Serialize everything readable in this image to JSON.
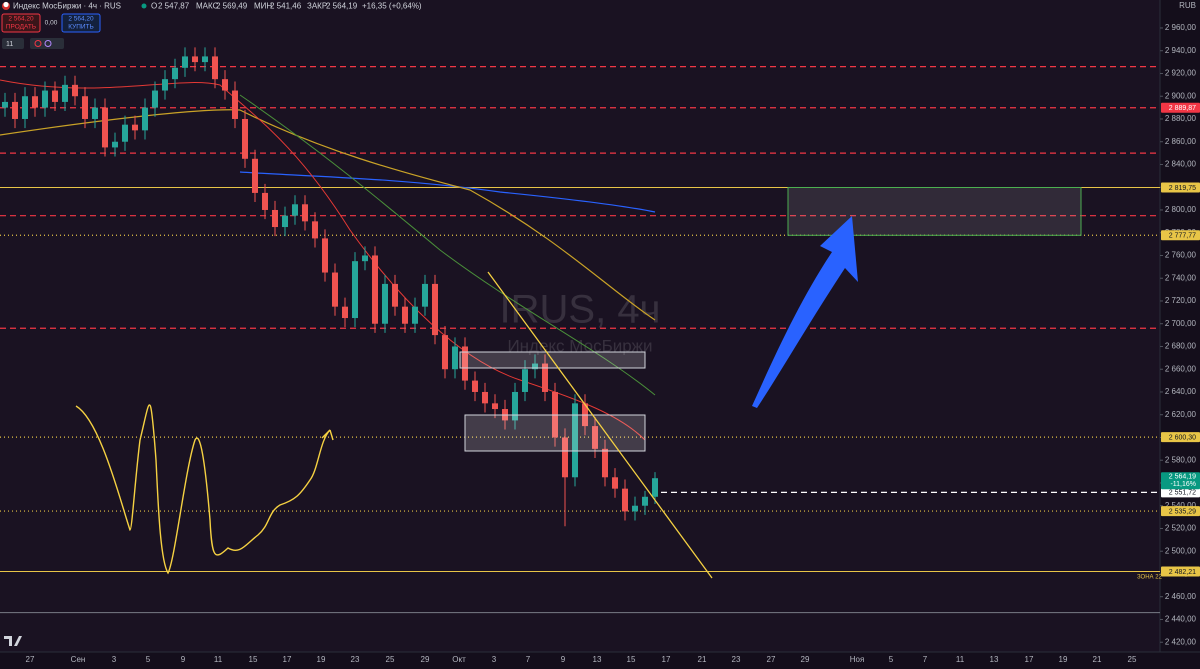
{
  "header": {
    "symbol": "Индекс МосБиржи · 4ч · RUS",
    "open_label": "О",
    "open": "2 547,87",
    "high_label": "МАКС",
    "high": "2 569,49",
    "low_label": "МИН",
    "low": "2 541,46",
    "close_label": "ЗАКР",
    "close": "2 564,19",
    "change": "+16,35 (+0,64%)"
  },
  "trade_panel": {
    "sell_price": "2 564,20",
    "sell": "ПРОДАТЬ",
    "spread": "0,00",
    "buy_price": "2 564,20",
    "buy": "КУПИТЬ"
  },
  "indicators_count": "11",
  "currency": "RUB",
  "watermark": {
    "symbol": "IRUS, 4ч",
    "name": "Индекс МосБиржи"
  },
  "chart_data": {
    "type": "candlestick",
    "categories": [
      "27",
      "Сен",
      "3",
      "5",
      "9",
      "11",
      "15",
      "17",
      "19",
      "23",
      "25",
      "29",
      "Окт",
      "3",
      "7",
      "9",
      "13",
      "15",
      "17",
      "21",
      "23",
      "27",
      "29",
      "Ноя",
      "5",
      "7",
      "11",
      "13",
      "17",
      "19",
      "21",
      "25"
    ],
    "open": [
      2890,
      2895,
      2880,
      2900,
      2890,
      2905,
      2895,
      2910,
      2900,
      2880,
      2890,
      2855,
      2860,
      2875,
      2870,
      2890,
      2905,
      2915,
      2925,
      2935,
      2930,
      2935,
      2915,
      2905,
      2880,
      2845,
      2815,
      2800,
      2785,
      2795,
      2805,
      2790,
      2775,
      2745,
      2715,
      2705,
      2755,
      2760,
      2700,
      2735,
      2715,
      2700,
      2715,
      2735,
      2690,
      2660,
      2680,
      2650,
      2640,
      2630,
      2625,
      2615,
      2640,
      2660,
      2665,
      2640,
      2600,
      2565,
      2630,
      2610,
      2590,
      2565,
      2555,
      2535,
      2540,
      2547.87
    ],
    "high": [
      2903,
      2903,
      2908,
      2908,
      2913,
      2913,
      2918,
      2918,
      2908,
      2898,
      2898,
      2868,
      2883,
      2883,
      2898,
      2913,
      2923,
      2933,
      2943,
      2943,
      2943,
      2943,
      2923,
      2913,
      2888,
      2853,
      2823,
      2808,
      2803,
      2813,
      2813,
      2798,
      2783,
      2753,
      2723,
      2763,
      2768,
      2768,
      2743,
      2743,
      2723,
      2723,
      2743,
      2743,
      2698,
      2688,
      2688,
      2658,
      2648,
      2638,
      2633,
      2648,
      2668,
      2673,
      2673,
      2648,
      2608,
      2638,
      2638,
      2618,
      2598,
      2573,
      2563,
      2548,
      2553,
      2569.49
    ],
    "low": [
      2882,
      2872,
      2872,
      2882,
      2882,
      2887,
      2887,
      2892,
      2872,
      2872,
      2847,
      2847,
      2852,
      2862,
      2862,
      2882,
      2897,
      2907,
      2917,
      2922,
      2922,
      2907,
      2897,
      2872,
      2837,
      2807,
      2792,
      2777,
      2777,
      2787,
      2782,
      2767,
      2737,
      2707,
      2697,
      2697,
      2747,
      2692,
      2692,
      2707,
      2692,
      2692,
      2707,
      2682,
      2652,
      2652,
      2642,
      2632,
      2622,
      2617,
      2607,
      2607,
      2632,
      2652,
      2632,
      2592,
      2522,
      2557,
      2602,
      2582,
      2557,
      2547,
      2527,
      2527,
      2532,
      2541.46
    ],
    "close": [
      2895,
      2880,
      2900,
      2890,
      2905,
      2895,
      2910,
      2900,
      2880,
      2890,
      2855,
      2860,
      2875,
      2870,
      2890,
      2905,
      2915,
      2925,
      2935,
      2930,
      2935,
      2915,
      2905,
      2880,
      2845,
      2815,
      2800,
      2785,
      2795,
      2805,
      2790,
      2775,
      2745,
      2715,
      2705,
      2755,
      2760,
      2700,
      2735,
      2715,
      2700,
      2715,
      2735,
      2690,
      2660,
      2680,
      2650,
      2640,
      2630,
      2625,
      2615,
      2640,
      2660,
      2665,
      2640,
      2600,
      2565,
      2630,
      2610,
      2590,
      2565,
      2555,
      2535,
      2540,
      2547.87,
      2564.19
    ],
    "up_color": "#26a69a",
    "down_color": "#ef5350",
    "ylim": [
      2411.4,
      2984.6
    ],
    "yticks": [
      {
        "value": 2420,
        "label": "2 420,00"
      },
      {
        "value": 2440,
        "label": "2 440,00"
      },
      {
        "value": 2460,
        "label": "2 460,00"
      },
      {
        "value": 2480,
        "label": "2 480,00"
      },
      {
        "value": 2500,
        "label": "2 500,00"
      },
      {
        "value": 2520,
        "label": "2 520,00"
      },
      {
        "value": 2540,
        "label": "2 540,00"
      },
      {
        "value": 2560,
        "label": "2 560,00"
      },
      {
        "value": 2580,
        "label": "2 580,00"
      },
      {
        "value": 2600,
        "label": "2 600,00"
      },
      {
        "value": 2620,
        "label": "2 620,00"
      },
      {
        "value": 2640,
        "label": "2 640,00"
      },
      {
        "value": 2660,
        "label": "2 660,00"
      },
      {
        "value": 2680,
        "label": "2 680,00"
      },
      {
        "value": 2700,
        "label": "2 700,00"
      },
      {
        "value": 2720,
        "label": "2 720,00"
      },
      {
        "value": 2740,
        "label": "2 740,00"
      },
      {
        "value": 2760,
        "label": "2 760,00"
      },
      {
        "value": 2780,
        "label": "2 780,00"
      },
      {
        "value": 2800,
        "label": "2 800,00"
      },
      {
        "value": 2820,
        "label": "2 820,00"
      },
      {
        "value": 2840,
        "label": "2 840,00"
      },
      {
        "value": 2860,
        "label": "2 860,00"
      },
      {
        "value": 2880,
        "label": "2 880,00"
      },
      {
        "value": 2900,
        "label": "2 900,00"
      },
      {
        "value": 2920,
        "label": "2 920,00"
      },
      {
        "value": 2940,
        "label": "2 940,00"
      },
      {
        "value": 2960,
        "label": "2 960,00"
      }
    ],
    "levels": [
      {
        "value": 2926,
        "color": "#f23645",
        "style": "dashed"
      },
      {
        "value": 2889.87,
        "label": "2 889,87",
        "color": "#f23645",
        "style": "dashed"
      },
      {
        "value": 2850,
        "color": "#f23645",
        "style": "dashed"
      },
      {
        "value": 2819.75,
        "label": "2 819,75",
        "color": "#e8c547",
        "style": "solid"
      },
      {
        "value": 2795,
        "color": "#f23645",
        "style": "dashed"
      },
      {
        "value": 2777.77,
        "label": "2 777,77",
        "color": "#e8c547",
        "style": "dotted"
      },
      {
        "value": 2696,
        "color": "#f23645",
        "style": "dashed"
      },
      {
        "value": 2600.3,
        "label": "2 600,30",
        "color": "#e8c547",
        "style": "dotted"
      },
      {
        "value": 2551.72,
        "label": "2 551,72",
        "color": "#ffffff",
        "style": "dashed",
        "extend": "right"
      },
      {
        "value": 2535.29,
        "label": "2 535,29",
        "color": "#e8c547",
        "style": "dotted"
      },
      {
        "value": 2482.21,
        "label": "2 482,21",
        "color": "#e8c547",
        "style": "solid"
      },
      {
        "value": 2446,
        "color": "#787b86",
        "style": "solid"
      }
    ],
    "last_price": {
      "label": "2 564,19",
      "change": "-11,16%",
      "color": "#089981"
    },
    "annotations": [
      "ЗОНА 22"
    ]
  }
}
